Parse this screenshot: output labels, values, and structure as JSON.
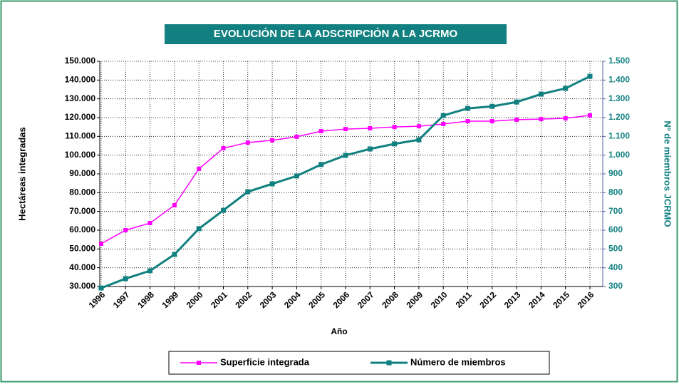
{
  "chart_data": {
    "type": "line",
    "title": "EVOLUCIÓN DE LA ADSCRIPCIÓN A LA JCRMO",
    "x_label": "Año",
    "y_label": "Hectáreas integradas",
    "y2_label": "Nº de miembros JCRMO",
    "categories": [
      "1996",
      "1997",
      "1998",
      "1999",
      "2000",
      "2001",
      "2002",
      "2003",
      "2004",
      "2005",
      "2006",
      "2007",
      "2008",
      "2009",
      "2010",
      "2011",
      "2012",
      "2013",
      "2014",
      "2015",
      "2016"
    ],
    "series": [
      {
        "name": "Superficie integrada",
        "color": "#ff00ff",
        "axis": "y",
        "values": [
          52800,
          60000,
          63800,
          73300,
          92700,
          103700,
          106700,
          107900,
          109800,
          112800,
          113900,
          114300,
          115000,
          115400,
          116600,
          118100,
          118100,
          118900,
          119200,
          119600,
          121200
        ]
      },
      {
        "name": "Número de miembros",
        "color": "#118080",
        "axis": "y2",
        "values": [
          292,
          342,
          384,
          471,
          608,
          706,
          805,
          847,
          889,
          950,
          999,
          1033,
          1060,
          1082,
          1211,
          1249,
          1260,
          1283,
          1325,
          1356,
          1420
        ]
      }
    ],
    "ylim": [
      30000,
      150000
    ],
    "yticks": [
      {
        "value": 30000,
        "label": "30.000"
      },
      {
        "value": 40000,
        "label": "40.000"
      },
      {
        "value": 50000,
        "label": "50.000"
      },
      {
        "value": 60000,
        "label": "60.000"
      },
      {
        "value": 70000,
        "label": "70.000"
      },
      {
        "value": 80000,
        "label": "80.000"
      },
      {
        "value": 90000,
        "label": "90.000"
      },
      {
        "value": 100000,
        "label": "100.000"
      },
      {
        "value": 110000,
        "label": "110.000"
      },
      {
        "value": 120000,
        "label": "120.000"
      },
      {
        "value": 130000,
        "label": "130.000"
      },
      {
        "value": 140000,
        "label": "140.000"
      },
      {
        "value": 150000,
        "label": "150.000"
      }
    ],
    "y2lim": [
      300,
      1500
    ],
    "y2ticks": [
      300,
      400,
      500,
      600,
      700,
      800,
      900,
      {
        "value": 1000,
        "label": "1.000"
      },
      {
        "value": 1100,
        "label": "1.100"
      },
      {
        "value": 1200,
        "label": "1.200"
      },
      {
        "value": 1300,
        "label": "1.300"
      },
      {
        "value": 1400,
        "label": "1.400"
      },
      {
        "value": 1500,
        "label": "1.500"
      }
    ],
    "grid": true,
    "legend": "bottom"
  }
}
